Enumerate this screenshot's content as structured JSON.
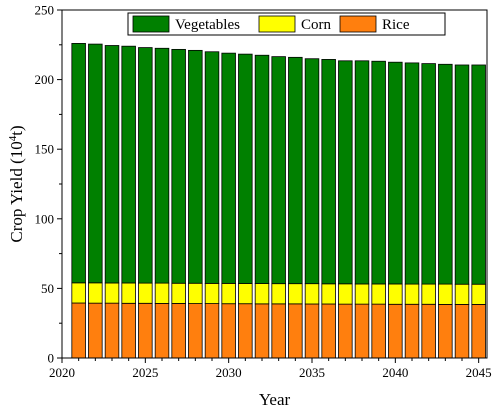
{
  "chart_data": {
    "type": "bar",
    "stacked": true,
    "title": "",
    "xlabel": "Year",
    "ylabel_prefix": "Crop Yield (10",
    "ylabel_sup": "4",
    "ylabel_suffix": "t)",
    "xlim": [
      2020,
      2045.5
    ],
    "ylim": [
      0,
      250
    ],
    "xticks": [
      2020,
      2025,
      2030,
      2035,
      2040,
      2045
    ],
    "yticks": [
      0,
      50,
      100,
      150,
      200,
      250
    ],
    "grid": false,
    "legend_position": "top",
    "categories": [
      2021,
      2022,
      2023,
      2024,
      2025,
      2026,
      2027,
      2028,
      2029,
      2030,
      2031,
      2032,
      2033,
      2034,
      2035,
      2036,
      2037,
      2038,
      2039,
      2040,
      2041,
      2042,
      2043,
      2044,
      2045
    ],
    "series": [
      {
        "name": "Rice",
        "color": "#ff7f0e",
        "values": [
          39.5,
          39.4,
          39.4,
          39.3,
          39.3,
          39.2,
          39.2,
          39.1,
          39.1,
          39.0,
          39.0,
          38.9,
          38.9,
          38.9,
          38.8,
          38.8,
          38.7,
          38.7,
          38.7,
          38.6,
          38.6,
          38.6,
          38.5,
          38.5,
          38.5
        ]
      },
      {
        "name": "Corn",
        "color": "#ffff00",
        "values": [
          14.5,
          14.6,
          14.5,
          14.6,
          14.5,
          14.6,
          14.5,
          14.6,
          14.5,
          14.6,
          14.5,
          14.6,
          14.5,
          14.5,
          14.6,
          14.5,
          14.6,
          14.5,
          14.5,
          14.6,
          14.5,
          14.5,
          14.6,
          14.5,
          14.5
        ]
      },
      {
        "name": "Vegetables",
        "color": "#008000",
        "values": [
          172.0,
          171.5,
          170.6,
          170.1,
          169.2,
          168.7,
          168.0,
          167.3,
          166.4,
          165.4,
          164.8,
          164.0,
          163.1,
          162.6,
          161.6,
          161.2,
          160.2,
          160.3,
          160.0,
          159.3,
          158.9,
          158.4,
          157.9,
          157.5,
          157.5
        ]
      }
    ],
    "legend_order": [
      "Vegetables",
      "Corn",
      "Rice"
    ]
  }
}
